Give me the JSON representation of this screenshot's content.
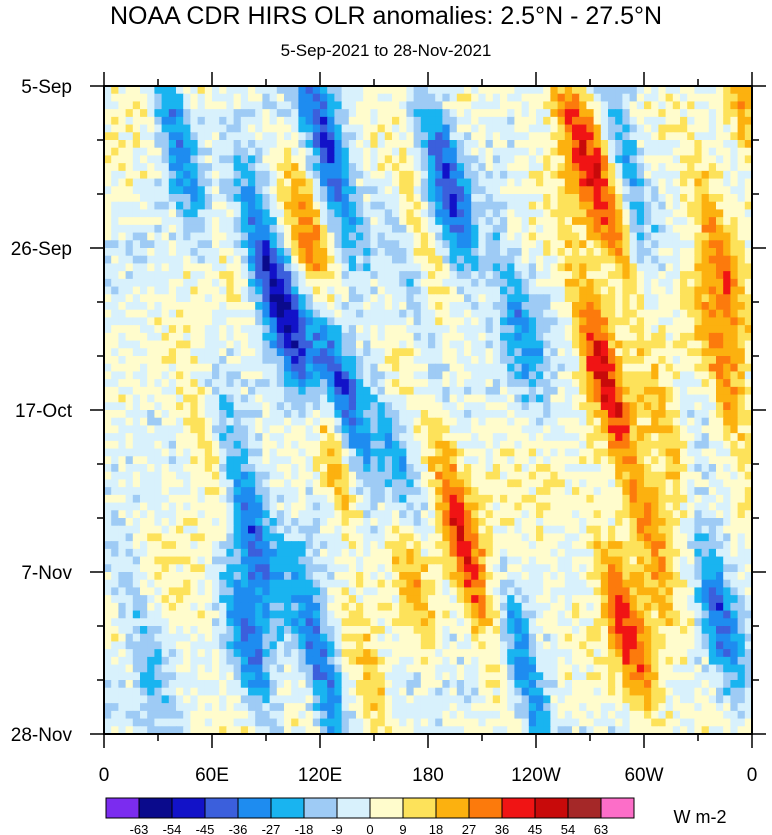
{
  "chart_data": {
    "type": "heatmap",
    "title": "NOAA CDR HIRS OLR anomalies: 2.5°N - 27.5°N",
    "subtitle": "5-Sep-2021 to 28-Nov-2021",
    "x_tick_labels": [
      "0",
      "60E",
      "120E",
      "180",
      "120W",
      "60W",
      "0"
    ],
    "x_ticks_deg": [
      0,
      60,
      120,
      180,
      240,
      300,
      360
    ],
    "x_range_deg": [
      0,
      360
    ],
    "y_tick_labels": [
      "5-Sep",
      "26-Sep",
      "17-Oct",
      "7-Nov",
      "28-Nov"
    ],
    "y_ticks_day": [
      0,
      21,
      42,
      63,
      84
    ],
    "y_range_day": [
      0,
      84
    ],
    "colorbar": {
      "labels": [
        "-63",
        "-54",
        "-45",
        "-36",
        "-27",
        "-18",
        "-9",
        "0",
        "9",
        "18",
        "27",
        "36",
        "45",
        "54",
        "63"
      ],
      "colors": [
        "#7b2cef",
        "#0a0a8c",
        "#1212c8",
        "#3b5fdc",
        "#1e8cf0",
        "#19b4f0",
        "#9ecbf5",
        "#d8f1fc",
        "#fffccc",
        "#fde25a",
        "#fcb10f",
        "#fc7a0c",
        "#f01414",
        "#c80a0a",
        "#a52828",
        "#fc6ec8"
      ],
      "units": "W m-2"
    },
    "features": [
      {
        "lon": 130,
        "day": 37,
        "value": -60
      },
      {
        "lon": 112,
        "day": 36,
        "value": -45
      },
      {
        "lon": 90,
        "day": 23,
        "value": -50
      },
      {
        "lon": 82,
        "day": 57,
        "value": -40
      },
      {
        "lon": 80,
        "day": 72,
        "value": -36
      },
      {
        "lon": 120,
        "day": 75,
        "value": -40
      },
      {
        "lon": 125,
        "day": 9,
        "value": -45
      },
      {
        "lon": 190,
        "day": 12,
        "value": -40
      },
      {
        "lon": 176,
        "day": 27,
        "value": -35
      },
      {
        "lon": 160,
        "day": 48,
        "value": -30
      },
      {
        "lon": 340,
        "day": 67,
        "value": -40
      },
      {
        "lon": 235,
        "day": 77,
        "value": -30
      },
      {
        "lon": 40,
        "day": 6,
        "value": -36
      },
      {
        "lon": 290,
        "day": 10,
        "value": -30
      },
      {
        "lon": 275,
        "day": 35,
        "value": 45
      },
      {
        "lon": 125,
        "day": 46,
        "value": 40
      },
      {
        "lon": 118,
        "day": 24,
        "value": 40
      },
      {
        "lon": 175,
        "day": 22,
        "value": 36
      },
      {
        "lon": 195,
        "day": 55,
        "value": 30
      },
      {
        "lon": 300,
        "day": 55,
        "value": 30
      },
      {
        "lon": 290,
        "day": 70,
        "value": 36
      },
      {
        "lon": 280,
        "day": 16,
        "value": 30
      },
      {
        "lon": 340,
        "day": 20,
        "value": 27
      },
      {
        "lon": 315,
        "day": 48,
        "value": 27
      },
      {
        "lon": 55,
        "day": 46,
        "value": 18
      },
      {
        "lon": 260,
        "day": 5,
        "value": 27
      },
      {
        "lon": 170,
        "day": 62,
        "value": 27
      },
      {
        "lon": 345,
        "day": 38,
        "value": 27
      },
      {
        "lon": 20,
        "day": 70,
        "value": -20
      },
      {
        "lon": 230,
        "day": 30,
        "value": -25
      },
      {
        "lon": 210,
        "day": 68,
        "value": 20
      },
      {
        "lon": 150,
        "day": 80,
        "value": 18
      },
      {
        "lon": 355,
        "day": 2,
        "value": 27
      }
    ]
  }
}
